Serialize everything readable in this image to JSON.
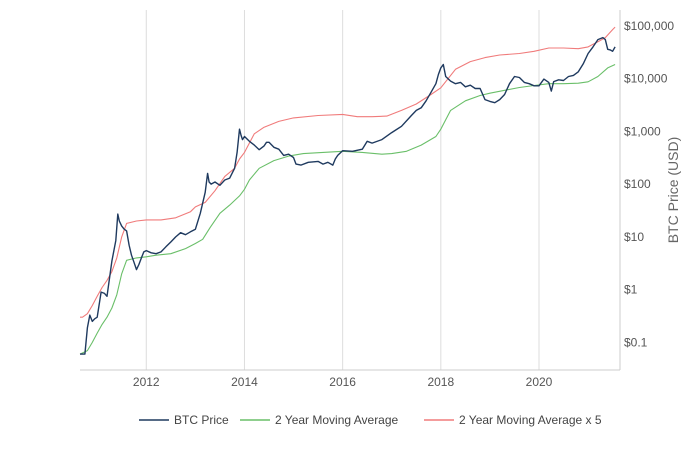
{
  "chart_data": {
    "type": "line",
    "title": "",
    "xlabel": "",
    "ylabel": "BTC Price (USD)",
    "y_scale": "log",
    "ylim": [
      0.03,
      200000
    ],
    "xlim": [
      2010.65,
      2021.65
    ],
    "grid": "vertical",
    "legend_position": "bottom",
    "x_ticks": [
      {
        "value": 2012,
        "label": "2012"
      },
      {
        "value": 2014,
        "label": "2014"
      },
      {
        "value": 2016,
        "label": "2016"
      },
      {
        "value": 2018,
        "label": "2018"
      },
      {
        "value": 2020,
        "label": "2020"
      }
    ],
    "y_ticks": [
      {
        "value": 100000,
        "label": "$100,000"
      },
      {
        "value": 10000,
        "label": "$10,000"
      },
      {
        "value": 1000,
        "label": "$1,000"
      },
      {
        "value": 100,
        "label": "$100"
      },
      {
        "value": 10,
        "label": "$10"
      },
      {
        "value": 1,
        "label": "$1"
      },
      {
        "value": 0.1,
        "label": "$0.1"
      }
    ],
    "series": [
      {
        "name": "BTC Price",
        "color": "#1f3a5f",
        "x": [
          2010.65,
          2010.75,
          2010.8,
          2010.85,
          2010.9,
          2010.95,
          2011.0,
          2011.08,
          2011.15,
          2011.2,
          2011.3,
          2011.38,
          2011.42,
          2011.45,
          2011.5,
          2011.55,
          2011.6,
          2011.65,
          2011.7,
          2011.75,
          2011.8,
          2011.85,
          2011.9,
          2011.95,
          2012.0,
          2012.1,
          2012.2,
          2012.3,
          2012.4,
          2012.5,
          2012.6,
          2012.7,
          2012.8,
          2012.9,
          2013.0,
          2013.1,
          2013.2,
          2013.25,
          2013.28,
          2013.32,
          2013.4,
          2013.5,
          2013.6,
          2013.7,
          2013.8,
          2013.85,
          2013.9,
          2013.93,
          2013.96,
          2014.0,
          2014.1,
          2014.2,
          2014.3,
          2014.4,
          2014.45,
          2014.5,
          2014.6,
          2014.7,
          2014.8,
          2014.9,
          2015.0,
          2015.05,
          2015.15,
          2015.3,
          2015.5,
          2015.6,
          2015.7,
          2015.8,
          2015.85,
          2015.9,
          2016.0,
          2016.2,
          2016.4,
          2016.5,
          2016.6,
          2016.8,
          2017.0,
          2017.2,
          2017.4,
          2017.5,
          2017.6,
          2017.7,
          2017.8,
          2017.9,
          2017.95,
          2018.0,
          2018.05,
          2018.1,
          2018.2,
          2018.3,
          2018.4,
          2018.5,
          2018.6,
          2018.7,
          2018.8,
          2018.9,
          2019.0,
          2019.1,
          2019.2,
          2019.3,
          2019.4,
          2019.5,
          2019.6,
          2019.7,
          2019.8,
          2019.9,
          2020.0,
          2020.1,
          2020.2,
          2020.25,
          2020.3,
          2020.4,
          2020.5,
          2020.6,
          2020.7,
          2020.8,
          2020.9,
          2021.0,
          2021.1,
          2021.2,
          2021.3,
          2021.35,
          2021.4,
          2021.45,
          2021.5,
          2021.55
        ],
        "values": [
          0.06,
          0.06,
          0.19,
          0.33,
          0.25,
          0.28,
          0.3,
          0.9,
          0.85,
          0.75,
          3.5,
          8.5,
          27,
          20,
          16,
          14,
          13,
          7,
          4.5,
          3.3,
          2.4,
          3,
          4,
          5.2,
          5.5,
          5,
          4.8,
          5.2,
          6.5,
          8,
          10,
          12,
          11,
          12.5,
          14,
          28,
          70,
          160,
          110,
          100,
          110,
          95,
          120,
          130,
          200,
          400,
          1100,
          850,
          700,
          800,
          650,
          550,
          450,
          530,
          620,
          620,
          500,
          460,
          350,
          370,
          320,
          240,
          230,
          260,
          270,
          240,
          260,
          230,
          300,
          350,
          430,
          420,
          460,
          650,
          600,
          700,
          950,
          1250,
          2000,
          2500,
          2800,
          3800,
          5500,
          8000,
          12000,
          16000,
          18500,
          11000,
          9000,
          8000,
          8500,
          7000,
          7500,
          6500,
          6500,
          4000,
          3700,
          3500,
          4000,
          5000,
          8000,
          11000,
          10500,
          8500,
          8000,
          7300,
          7300,
          9800,
          8500,
          5800,
          8800,
          9500,
          9200,
          11000,
          11500,
          13500,
          19000,
          30000,
          40000,
          55000,
          60000,
          55000,
          36000,
          35000,
          33000,
          40000
        ]
      },
      {
        "name": "2 Year Moving Average",
        "color": "#6abf69",
        "x": [
          2010.65,
          2010.8,
          2010.9,
          2011.0,
          2011.1,
          2011.2,
          2011.3,
          2011.4,
          2011.5,
          2011.6,
          2011.8,
          2012.0,
          2012.2,
          2012.5,
          2012.8,
          2013.0,
          2013.15,
          2013.3,
          2013.5,
          2013.7,
          2013.9,
          2014.0,
          2014.1,
          2014.3,
          2014.6,
          2014.9,
          2015.2,
          2015.6,
          2016.0,
          2016.4,
          2016.8,
          2017.0,
          2017.3,
          2017.6,
          2017.9,
          2018.0,
          2018.2,
          2018.5,
          2018.8,
          2019.0,
          2019.3,
          2019.6,
          2019.9,
          2020.2,
          2020.5,
          2020.8,
          2021.0,
          2021.2,
          2021.4,
          2021.55
        ],
        "values": [
          0.06,
          0.07,
          0.1,
          0.15,
          0.22,
          0.3,
          0.45,
          0.8,
          2,
          3.6,
          4,
          4.2,
          4.5,
          4.8,
          6,
          7.5,
          9,
          15,
          28,
          40,
          60,
          80,
          120,
          200,
          280,
          340,
          380,
          400,
          420,
          400,
          370,
          380,
          420,
          550,
          800,
          1100,
          2500,
          3800,
          4800,
          5300,
          6000,
          6800,
          7400,
          8000,
          8000,
          8200,
          8700,
          11000,
          16000,
          18500
        ]
      },
      {
        "name": "2 Year Moving Average x 5",
        "color": "#f07b7b",
        "x": [
          2010.65,
          2010.7,
          2010.8,
          2010.9,
          2011.0,
          2011.1,
          2011.2,
          2011.3,
          2011.4,
          2011.5,
          2011.6,
          2011.8,
          2012.0,
          2012.3,
          2012.6,
          2012.9,
          2013.0,
          2013.2,
          2013.4,
          2013.6,
          2013.8,
          2013.9,
          2014.0,
          2014.2,
          2014.4,
          2014.7,
          2015.0,
          2015.5,
          2016.0,
          2016.3,
          2016.6,
          2016.9,
          2017.2,
          2017.5,
          2017.8,
          2018.0,
          2018.3,
          2018.6,
          2018.9,
          2019.2,
          2019.6,
          2019.9,
          2020.2,
          2020.5,
          2020.8,
          2021.0,
          2021.2,
          2021.35,
          2021.5,
          2021.55
        ],
        "values": [
          0.3,
          0.3,
          0.35,
          0.5,
          0.75,
          1.1,
          1.5,
          2.2,
          4,
          10,
          18,
          20,
          21,
          21,
          23,
          30,
          37,
          45,
          75,
          140,
          200,
          300,
          400,
          900,
          1200,
          1550,
          1800,
          2000,
          2100,
          1900,
          1900,
          1950,
          2500,
          3300,
          5000,
          6700,
          15000,
          21000,
          25000,
          28000,
          30000,
          33000,
          38000,
          38000,
          37000,
          40000,
          50000,
          60000,
          85000,
          95000
        ]
      }
    ]
  }
}
